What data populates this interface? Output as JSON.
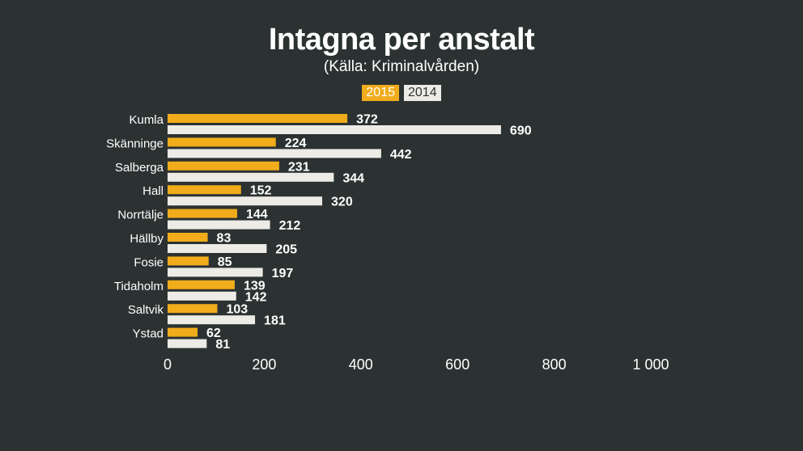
{
  "chart_data": {
    "type": "bar",
    "orientation": "horizontal",
    "title": "Intagna per anstalt",
    "subtitle": "(Källa: Kriminalvården)",
    "categories": [
      "Kumla",
      "Skänninge",
      "Salberga",
      "Hall",
      "Norrtälje",
      "Hällby",
      "Fosie",
      "Tidaholm",
      "Saltvik",
      "Ystad"
    ],
    "series": [
      {
        "name": "2015",
        "color": "#f0ac1b",
        "values": [
          372,
          224,
          231,
          152,
          144,
          83,
          85,
          139,
          103,
          62
        ]
      },
      {
        "name": "2014",
        "color": "#ecebe6",
        "values": [
          690,
          442,
          344,
          320,
          212,
          205,
          197,
          142,
          181,
          81
        ]
      }
    ],
    "xlim": [
      0,
      1000
    ],
    "ticks": [
      0,
      200,
      400,
      600,
      800,
      1000
    ],
    "tick_labels": [
      "0",
      "200",
      "400",
      "600",
      "800",
      "1 000"
    ],
    "grid": false,
    "legend_position": "top-center"
  }
}
